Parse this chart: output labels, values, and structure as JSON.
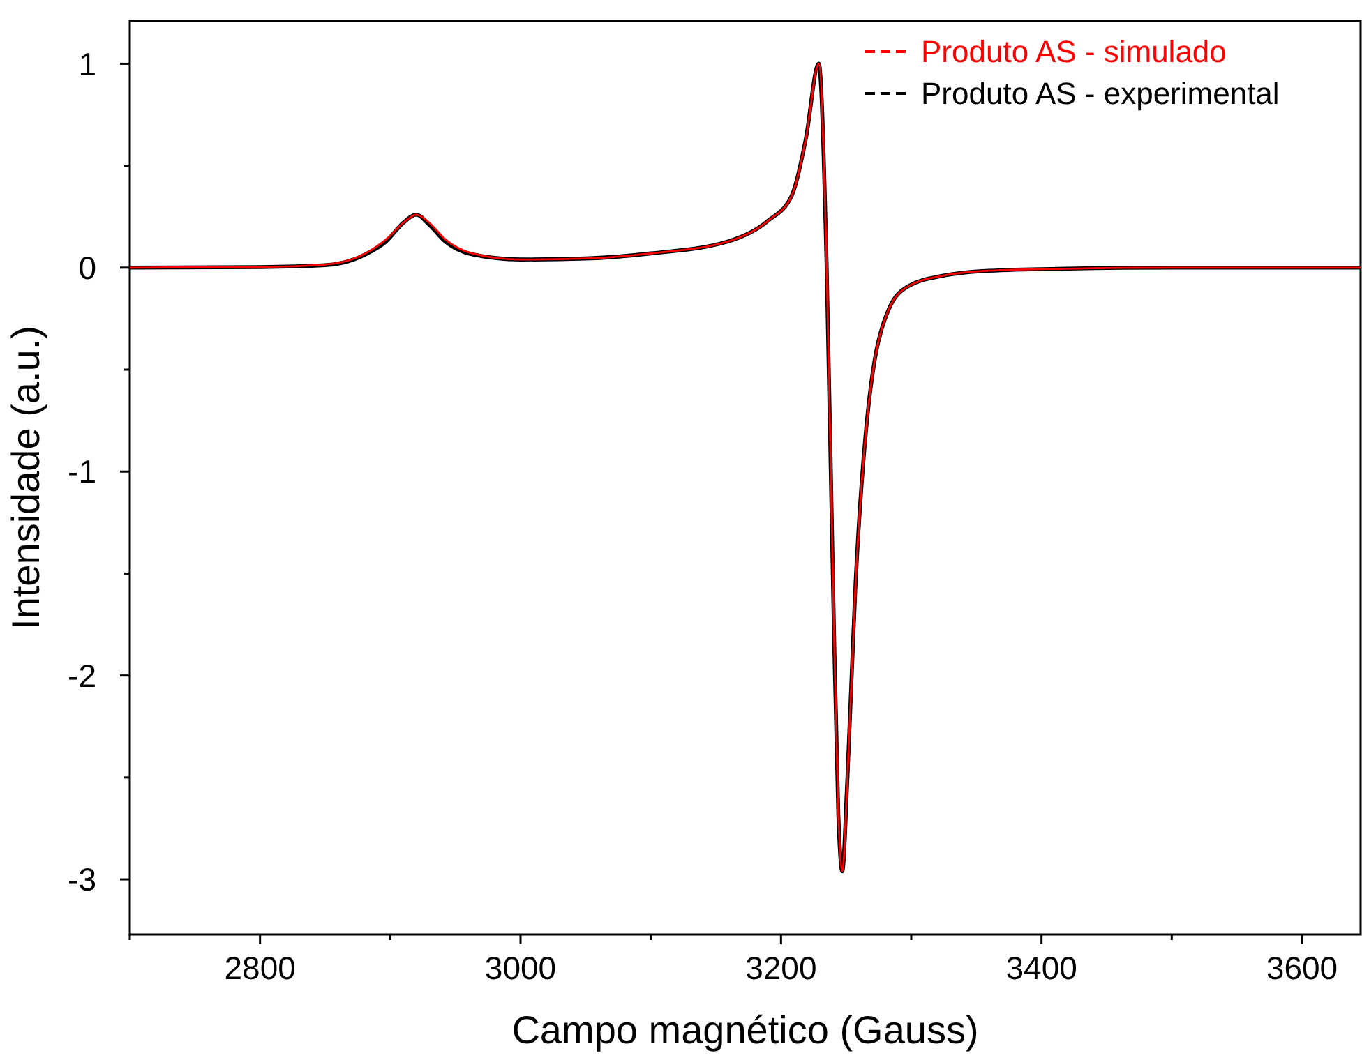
{
  "chart_data": {
    "type": "line",
    "xlabel": "Campo magnético (Gauss)",
    "ylabel": "Intensidade (a.u.)",
    "xlim": [
      2700,
      3645
    ],
    "ylim": [
      -3.27,
      1.21
    ],
    "xticks": [
      {
        "value": 2700,
        "label": null
      },
      2800,
      {
        "value": 2900,
        "label": null
      },
      3000,
      {
        "value": 3100,
        "label": null
      },
      3200,
      {
        "value": 3300,
        "label": null
      },
      3400,
      {
        "value": 3500,
        "label": null
      },
      3600
    ],
    "yticks": [
      {
        "value": -3,
        "label": "-3"
      },
      {
        "value": -2.5,
        "label": null
      },
      {
        "value": -2,
        "label": "-2"
      },
      {
        "value": -1.5,
        "label": null
      },
      {
        "value": -1,
        "label": "-1"
      },
      {
        "value": -0.5,
        "label": null
      },
      0,
      {
        "value": 0.5,
        "label": null
      },
      1
    ],
    "grid": false,
    "legend": "top right",
    "line_style": "solid",
    "marker": "none",
    "x": [
      2700,
      2800,
      2850,
      2881,
      2897,
      2910,
      2920,
      2930,
      2942,
      2963,
      3000,
      3050,
      3100,
      3160,
      3190,
      3208,
      3219,
      3229,
      3235,
      3240,
      3244,
      3247,
      3251,
      3257,
      3266,
      3283,
      3298,
      3324,
      3360,
      3420,
      3500,
      3645
    ],
    "series": [
      {
        "name": "Produto AS - simulado",
        "color": "#ff0000",
        "values": [
          0,
          0.003,
          0.015,
          0.07,
          0.14,
          0.22,
          0.26,
          0.22,
          0.14,
          0.07,
          0.04,
          0.045,
          0.07,
          0.13,
          0.23,
          0.35,
          0.63,
          1.0,
          0.02,
          -1.58,
          -2.68,
          -2.96,
          -2.5,
          -1.58,
          -0.75,
          -0.2,
          -0.09,
          -0.04,
          -0.015,
          -0.005,
          0,
          0
        ]
      },
      {
        "name": "Produto AS - experimental",
        "color": "#000000",
        "values": [
          0,
          0.003,
          0.012,
          0.065,
          0.13,
          0.22,
          0.26,
          0.21,
          0.13,
          0.065,
          0.04,
          0.045,
          0.07,
          0.13,
          0.23,
          0.35,
          0.63,
          1.0,
          0.02,
          -1.58,
          -2.68,
          -2.96,
          -2.5,
          -1.58,
          -0.75,
          -0.2,
          -0.09,
          -0.04,
          -0.015,
          -0.005,
          0,
          0
        ]
      }
    ]
  }
}
